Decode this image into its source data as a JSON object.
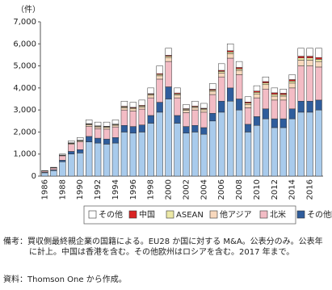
{
  "chart_data": {
    "type": "stacked-bar",
    "y_unit": "（件）",
    "categories": [
      "1986",
      null,
      "1988",
      null,
      "1990",
      null,
      "1992",
      null,
      "1994",
      null,
      "1996",
      null,
      "1998",
      null,
      "2000",
      null,
      "2002",
      null,
      "2004",
      null,
      "2006",
      null,
      "2008",
      null,
      "2010",
      null,
      "2012",
      null,
      "2014",
      null,
      "2016",
      null
    ],
    "series": [
      {
        "name": "EU",
        "color": "#a9cbec",
        "values": [
          150,
          250,
          650,
          1000,
          1050,
          1550,
          1500,
          1450,
          1500,
          2000,
          1950,
          2000,
          2400,
          2900,
          3500,
          2400,
          1950,
          2000,
          1900,
          2500,
          2900,
          3400,
          3000,
          2000,
          2300,
          2600,
          2200,
          2200,
          2600,
          2900,
          2900,
          3000
        ]
      },
      {
        "name": "その他欧州",
        "color": "#2f5d9c",
        "values": [
          30,
          40,
          70,
          120,
          150,
          250,
          220,
          230,
          250,
          300,
          300,
          320,
          350,
          450,
          550,
          350,
          300,
          300,
          300,
          350,
          500,
          600,
          500,
          350,
          400,
          450,
          400,
          400,
          450,
          500,
          500,
          450
        ]
      },
      {
        "name": "北米",
        "color": "#f3bcc5",
        "values": [
          50,
          80,
          200,
          320,
          350,
          450,
          430,
          450,
          480,
          700,
          700,
          720,
          800,
          1050,
          1150,
          800,
          630,
          700,
          700,
          850,
          1100,
          1350,
          1100,
          750,
          850,
          900,
          850,
          850,
          950,
          1600,
          1600,
          1500
        ]
      },
      {
        "name": "他アジア",
        "color": "#f8d8bd",
        "values": [
          5,
          10,
          20,
          40,
          50,
          80,
          80,
          80,
          80,
          100,
          100,
          100,
          120,
          150,
          180,
          130,
          110,
          110,
          110,
          150,
          180,
          200,
          200,
          150,
          180,
          200,
          180,
          180,
          220,
          260,
          260,
          250
        ]
      },
      {
        "name": "ASEAN",
        "color": "#ece8a6",
        "values": [
          5,
          5,
          10,
          20,
          20,
          30,
          30,
          30,
          30,
          40,
          40,
          40,
          40,
          60,
          60,
          50,
          40,
          40,
          40,
          50,
          70,
          80,
          70,
          60,
          70,
          80,
          80,
          70,
          90,
          100,
          100,
          100
        ]
      },
      {
        "name": "中国",
        "color": "#d92323",
        "values": [
          0,
          0,
          5,
          10,
          10,
          20,
          20,
          20,
          20,
          30,
          30,
          30,
          30,
          40,
          40,
          40,
          30,
          30,
          30,
          40,
          50,
          60,
          60,
          50,
          60,
          60,
          70,
          60,
          70,
          80,
          80,
          80
        ]
      },
      {
        "name": "その他",
        "color": "#ffffff",
        "values": [
          10,
          15,
          45,
          90,
          120,
          170,
          170,
          190,
          190,
          230,
          230,
          240,
          260,
          350,
          320,
          230,
          190,
          220,
          220,
          260,
          300,
          310,
          270,
          240,
          240,
          210,
          220,
          190,
          220,
          360,
          360,
          420
        ]
      }
    ],
    "ylim": [
      0,
      7000
    ],
    "yticks": [
      0,
      {
        "value": 1000,
        "label": "1,000"
      },
      {
        "value": 2000,
        "label": "2,000"
      },
      {
        "value": 3000,
        "label": "3,000"
      },
      {
        "value": 4000,
        "label": "4,000"
      },
      {
        "value": 5000,
        "label": "5,000"
      },
      {
        "value": 6000,
        "label": "6,000"
      },
      {
        "value": 7000,
        "label": "7,000"
      }
    ],
    "legend_order": "reversed"
  },
  "notes": "備考：買収側最終親企業の国籍による。EU28 か国に対する M&A。公表分のみ。公表年に計上。中国は香港を含む。その他欧州はロシアを含む。2017 年まで。",
  "source": "資料：Thomson One から作成。"
}
